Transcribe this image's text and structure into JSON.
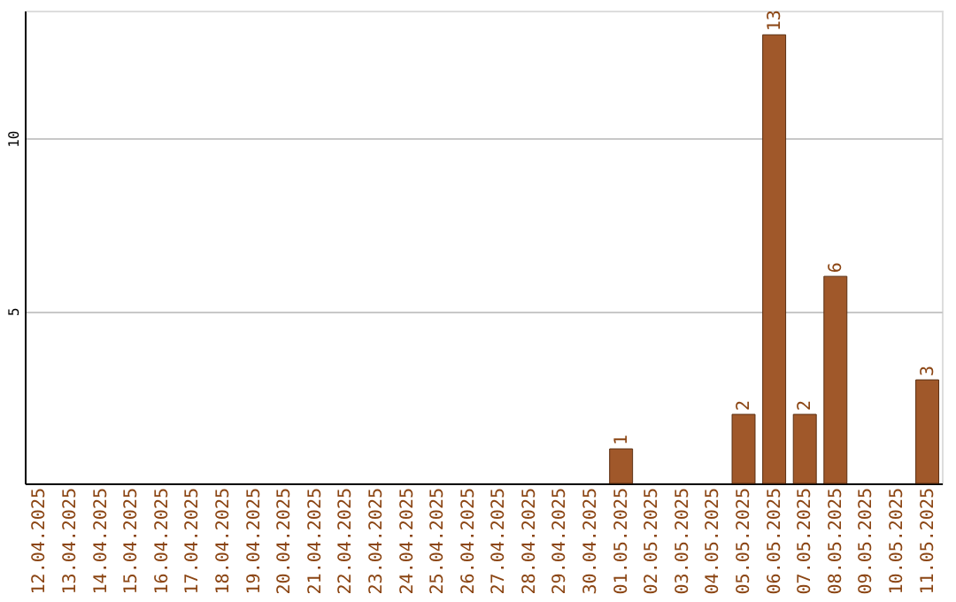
{
  "chart_data": {
    "type": "bar",
    "categories": [
      "12.04.2025",
      "13.04.2025",
      "14.04.2025",
      "15.04.2025",
      "16.04.2025",
      "17.04.2025",
      "18.04.2025",
      "19.04.2025",
      "20.04.2025",
      "21.04.2025",
      "22.04.2025",
      "23.04.2025",
      "24.04.2025",
      "25.04.2025",
      "26.04.2025",
      "27.04.2025",
      "28.04.2025",
      "29.04.2025",
      "30.04.2025",
      "01.05.2025",
      "02.05.2025",
      "03.05.2025",
      "04.05.2025",
      "05.05.2025",
      "06.05.2025",
      "07.05.2025",
      "08.05.2025",
      "09.05.2025",
      "10.05.2025",
      "11.05.2025"
    ],
    "values": [
      null,
      null,
      null,
      null,
      null,
      null,
      null,
      null,
      null,
      null,
      null,
      null,
      null,
      null,
      null,
      null,
      null,
      null,
      null,
      1,
      null,
      null,
      null,
      2,
      13,
      2,
      6,
      null,
      null,
      3
    ],
    "color": "#a0582a",
    "ylim": [
      0,
      13.7
    ],
    "yticks": [
      5,
      10
    ],
    "grid": "y",
    "data_labels": true
  }
}
